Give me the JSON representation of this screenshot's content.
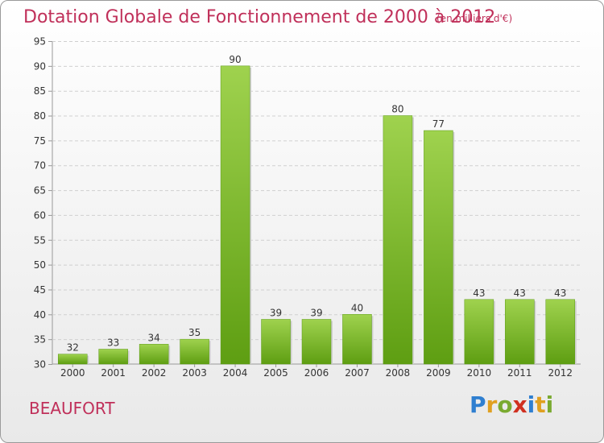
{
  "chart_data": {
    "type": "bar",
    "title": "Dotation Globale de Fonctionnement de 2000 à 2012",
    "subtitle": "(en milliers d'€)",
    "categories": [
      "2000",
      "2001",
      "2002",
      "2003",
      "2004",
      "2005",
      "2006",
      "2007",
      "2008",
      "2009",
      "2010",
      "2011",
      "2012"
    ],
    "values": [
      32,
      33,
      34,
      35,
      90,
      39,
      39,
      40,
      80,
      77,
      43,
      43,
      43
    ],
    "ylim": [
      30,
      95
    ],
    "yticks": [
      30,
      35,
      40,
      45,
      50,
      55,
      60,
      65,
      70,
      75,
      80,
      85,
      90,
      95
    ],
    "grid": true,
    "bar_color": "#7fbf2a"
  },
  "commune": "BEAUFORT",
  "logo": {
    "letters": [
      "P",
      "r",
      "o",
      "x",
      "i",
      "t",
      "i"
    ],
    "colors": [
      "#2f7fd0",
      "#e0a020",
      "#7aaa30",
      "#d03020",
      "#2f7fd0",
      "#e0a020",
      "#7aaa30"
    ]
  }
}
